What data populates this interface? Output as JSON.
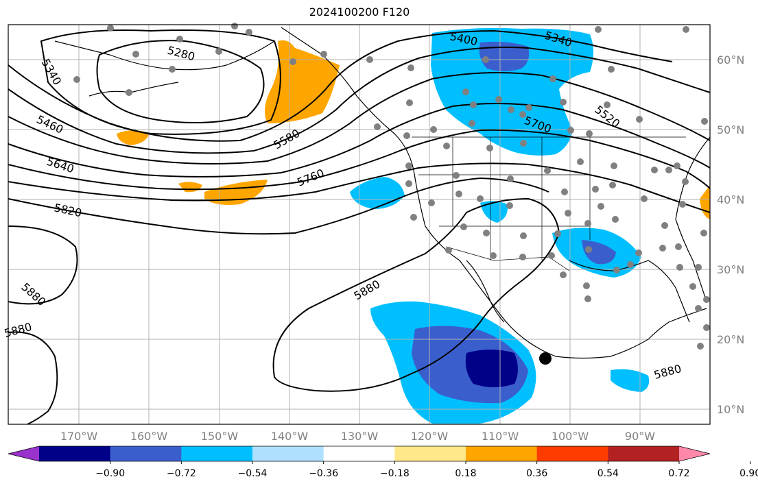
{
  "title": "2024100200 F120",
  "map": {
    "lat_labels": [
      "60°N",
      "50°N",
      "40°N",
      "30°N",
      "20°N",
      "10°N"
    ],
    "lon_labels": [
      "170°W",
      "160°W",
      "150°W",
      "140°W",
      "130°W",
      "120°W",
      "110°W",
      "100°W",
      "90°W"
    ],
    "height_contour_labels": [
      "5280",
      "5340",
      "5400",
      "5460",
      "5520",
      "5580",
      "5640",
      "5700",
      "5760",
      "5820",
      "5880"
    ]
  },
  "colorbar": {
    "ticks": [
      "−0.90",
      "−0.72",
      "−0.54",
      "−0.36",
      "−0.18",
      "0.18",
      "0.36",
      "0.54",
      "0.72",
      "0.90"
    ],
    "colors": [
      "#9933cc",
      "#000088",
      "#3a5fcd",
      "#00bfff",
      "#b0e0ff",
      "#ffffff",
      "#ffe88a",
      "#ffa500",
      "#ff3c00",
      "#b22222",
      "#ff88aa"
    ]
  }
}
